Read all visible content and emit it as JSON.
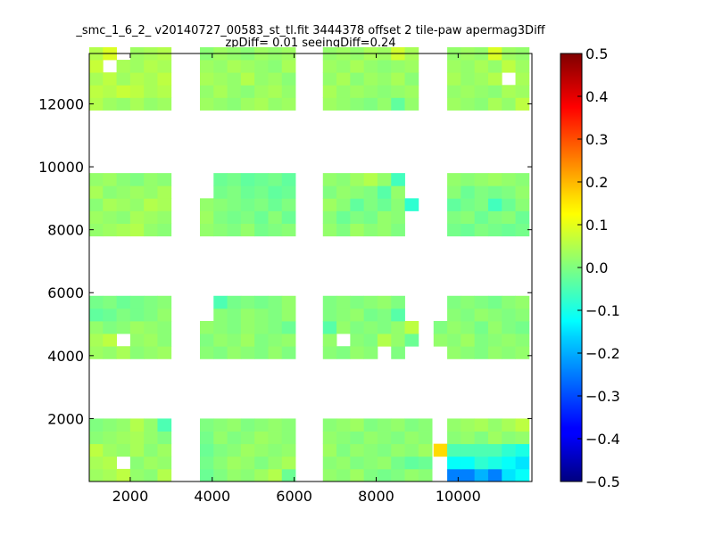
{
  "chart_data": {
    "type": "heatmap",
    "title_line1": "_smc_1_6_2_ v20140727_00583_st_tl.fit 3444378 offset 2 tile-paw apermag3Diff",
    "title_line2": "zpDiff= 0.01 seeingDiff=0.24",
    "xlim": [
      1000,
      11800
    ],
    "ylim": [
      0,
      13600
    ],
    "x_ticks": [
      2000,
      4000,
      6000,
      8000,
      10000
    ],
    "x_tick_labels": [
      "2000",
      "4000",
      "6000",
      "8000",
      "10000"
    ],
    "y_ticks": [
      2000,
      4000,
      6000,
      8000,
      10000,
      12000
    ],
    "y_tick_labels": [
      "2000",
      "4000",
      "6000",
      "8000",
      "10000",
      "12000"
    ],
    "colorbar": {
      "colormap": "jet",
      "range": [
        -0.5,
        0.5
      ],
      "ticks": [
        0.5,
        0.4,
        0.3,
        0.2,
        0.1,
        0.0,
        -0.1,
        -0.2,
        -0.3,
        -0.4,
        -0.5
      ],
      "tick_labels": [
        "0.5",
        "0.4",
        "0.3",
        "0.2",
        "0.1",
        "0.0",
        "−0.1",
        "−0.2",
        "−0.3",
        "−0.4",
        "−0.5"
      ]
    },
    "cell_size": [
      333,
      400
    ],
    "blocks": [
      {
        "x0": 1000,
        "y0": 0,
        "rows": [
          "0.03 0.04 0.06 0.02 0.01 0.05",
          "0.04 0.05 null 0.01 0.03 0.02",
          "0.06 0.03 0.02 0.04 0.01 0.03",
          "0.01 0.02 0.03 0.04 0.02 0.00",
          "0.00 0.01 0.02 0.05 0.02 -0.05"
        ]
      },
      {
        "x0": 3700,
        "y0": 0,
        "rows": [
          "-0.02 0.00 0.02 0.01 0.03 0.05 -0.02",
          "-0.01 0.01 0.03 0.02 0.00 0.02 0.04",
          "-0.02 0.00 0.01 0.03 0.02 0.01 0.02",
          "-0.01 0.02 0.00 0.01 0.03 0.02 0.01",
          "0.00 0.01 0.02 0.00 0.01 0.02 0.01"
        ]
      },
      {
        "x0": 6700,
        "y0": 0,
        "rows": [
          "0.02 0.01 0.03 0.00 -0.01 0.00 0.02 0.01",
          "0.01 0.02 0.00 0.01 0.02 -0.01 -0.03 -0.02",
          "0.03 0.00 0.02 0.01 0.00 0.02 0.01 0.03",
          "0.02 0.01 0.00 0.02 0.01 0.00 0.02 0.01",
          "0.01 0.02 0.03 0.00 0.01 0.02 0.00 0.01"
        ]
      },
      {
        "x0": 9400,
        "y0": 0,
        "rows": [
          "null -0.25 -0.25 -0.2 -0.25 -0.15 -0.12",
          "null -0.12 -0.12 -0.08 -0.1 -0.12 -0.15",
          "0.16 -0.05 -0.05 -0.05 -0.05 -0.08 -0.1",
          "null 0.01 0.02 0.00 0.03 0.01 0.02",
          "null 0.02 0.03 0.04 0.02 0.04 0.06"
        ]
      },
      {
        "x0": 1000,
        "y0": 3900,
        "rows": [
          "0.03 0.02 0.04 0.01 0.02 0.03",
          "0.04 0.06 null 0.02 0.03 0.01",
          "0.02 0.00 0.01 0.03 0.02 0.01",
          "-0.03 -0.02 0.00 -0.01 0.00 0.02",
          "-0.01 0.00 -0.02 -0.01 0.00 0.01"
        ]
      },
      {
        "x0": 3700,
        "y0": 3900,
        "rows": [
          "0.01 0.00 0.02 0.01 0.00 0.02 0.00",
          "0.00 0.02 0.01 0.03 0.00 0.01 0.02",
          "0.02 0.01 0.00 0.02 0.01 0.00 -0.02",
          "null 0.01 0.00 0.02 0.01 0.00 0.02",
          "null -0.05 -0.01 0.00 -0.01 0.00 0.02"
        ]
      },
      {
        "x0": 6700,
        "y0": 3900,
        "rows": [
          "0.01 0.00 0.02 0.01 null 0.00 null",
          "0.02 null 0.01 0.00 0.05 0.02 -0.02",
          "-0.04 0.02 0.00 0.01 0.00 0.02 0.06",
          "0.00 0.01 0.02 -0.01 0.00 -0.04 null",
          "0.00 0.01 0.00 0.01 0.02 0.00 null"
        ]
      },
      {
        "x0": 9400,
        "y0": 3900,
        "rows": [
          "null 0.02 0.01 0.00 0.02 0.01 0.02",
          "0.02 0.01 0.03 0.00 0.01 0.02 0.01",
          "0.00 0.02 0.01 -0.01 0.02 0.00 -0.01",
          "null 0.01 0.00 0.02 0.01 0.00 0.01",
          "null 0.00 0.01 0.00 -0.01 0.01 0.02"
        ]
      },
      {
        "x0": 1000,
        "y0": 7800,
        "rows": [
          "0.02 0.03 0.04 0.05 0.02 0.01",
          "0.03 0.02 0.01 0.04 0.03 0.02",
          "0.01 0.04 0.03 0.02 0.05 0.04",
          "0.04 0.01 0.02 0.03 0.02 0.04",
          "0.02 0.03 0.01 0.00 0.02 0.01"
        ]
      },
      {
        "x0": 3700,
        "y0": 7800,
        "rows": [
          "0.02 0.01 0.00 0.02 -0.01 0.00 0.01",
          "0.03 0.00 -0.01 0.00 -0.02 0.01 -0.02",
          "0.02 0.01 0.00 -0.01 0.00 -0.02 0.00",
          "null -0.01 0.00 -0.02 -0.01 -0.03 -0.02",
          "null -0.02 -0.01 -0.03 -0.02 -0.01 -0.03"
        ]
      },
      {
        "x0": 6700,
        "y0": 7800,
        "rows": [
          "0.02 0.00 0.03 0.01 0.02 0.00",
          "0.01 -0.02 0.00 -0.01 0.02 0.01",
          "0.03 0.01 -0.03 0.00 -0.02 0.01 -0.08",
          "0.00 0.02 0.01 0.00 -0.04 0.02",
          "0.02 0.01 0.03 0.05 0.02 -0.06"
        ]
      },
      {
        "x0": 9400,
        "y0": 7800,
        "rows": [
          "null -0.01 -0.02 0.00 -0.01 -0.02 -0.01",
          "null 0.00 0.01 -0.02 0.00 0.01 -0.02",
          "null -0.03 -0.01 0.00 -0.06 -0.02 0.01",
          "null 0.01 -0.02 0.00 -0.01 0.00 0.02",
          "null 0.02 0.01 0.02 0.03 0.02 0.01"
        ]
      },
      {
        "x0": 1000,
        "y0": 11800,
        "rows": [
          "0.05 0.03 0.02 0.04 0.02 0.03",
          "0.06 0.05 0.07 0.06 0.04 0.05",
          "0.04 0.06 0.03 0.05 0.04 0.06",
          "0.07 null 0.04 0.03 0.05 0.04",
          "0.05 0.09 null 0.03 0.04 0.05"
        ]
      },
      {
        "x0": 3700,
        "y0": 11800,
        "rows": [
          "0.03 0.02 0.01 0.03 0.04 0.02 0.03",
          "0.02 0.04 0.02 0.01 0.03 0.04 0.02",
          "0.04 0.03 0.02 0.05 0.02 0.03 0.01",
          "0.03 0.02 0.04 0.03 0.02 0.01 0.04",
          "0.01 0.03 0.02 0.01 0.03 0.02 0.03"
        ]
      },
      {
        "x0": 6700,
        "y0": 11800,
        "rows": [
          "0.03 0.02 0.01 0.00 0.02 -0.03 0.02",
          "0.04 0.02 0.03 0.02 0.01 0.02 0.03",
          "0.02 0.04 0.01 0.03 0.02 0.04 0.01",
          "0.03 0.02 0.04 0.02 0.01 0.02 0.03",
          "0.02 0.03 0.02 0.04 0.03 0.08 0.04"
        ]
      },
      {
        "x0": 9400,
        "y0": 11800,
        "rows": [
          "null 0.03 0.02 0.01 0.04 0.02 0.06",
          "null 0.02 0.03 0.02 0.01 0.04 0.03",
          "null 0.04 0.02 0.03 0.05 null 0.04",
          "null 0.03 0.02 0.04 0.02 0.06 0.03",
          "null 0.02 0.03 0.02 0.09 0.03 0.02"
        ]
      }
    ]
  }
}
